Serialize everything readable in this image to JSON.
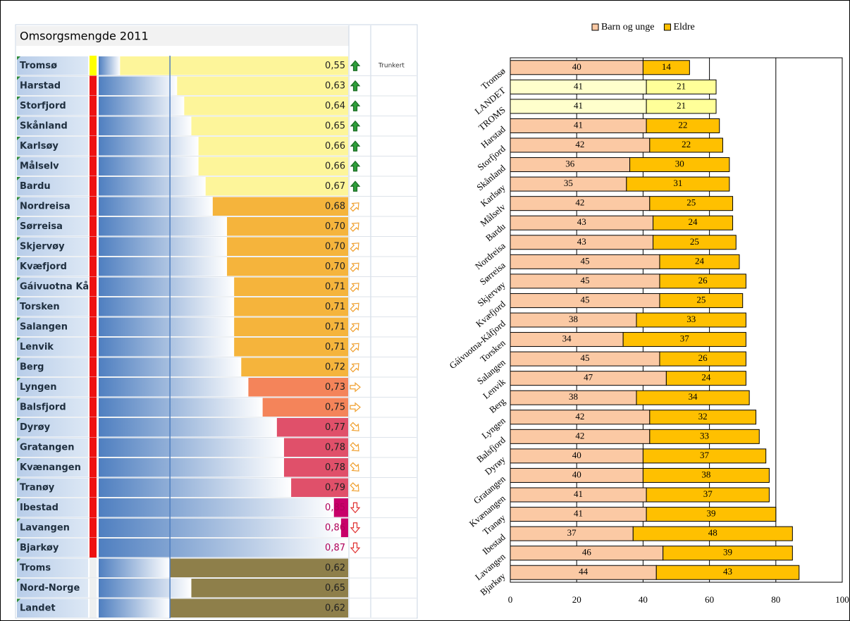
{
  "chart_data": [
    {
      "type": "databar",
      "title": "Omsorgsmengde 2011",
      "note": "Trunkert",
      "categories": [
        "Tromsø",
        "Harstad",
        "Storfjord",
        "Skånland",
        "Karlsøy",
        "Målselv",
        "Bardu",
        "Nordreisa",
        "Sørreisa",
        "Skjervøy",
        "Kvæfjord",
        "Gáivuotna Kå",
        "Torsken",
        "Salangen",
        "Lenvik",
        "Berg",
        "Lyngen",
        "Balsfjord",
        "Dyrøy",
        "Gratangen",
        "Kvænangen",
        "Tranøy",
        "Ibestad",
        "Lavangen",
        "Bjarkøy",
        "Troms",
        "Nord-Norge",
        "Landet"
      ],
      "values": [
        0.55,
        0.63,
        0.64,
        0.65,
        0.66,
        0.66,
        0.67,
        0.68,
        0.7,
        0.7,
        0.7,
        0.71,
        0.71,
        0.71,
        0.71,
        0.72,
        0.73,
        0.75,
        0.77,
        0.78,
        0.78,
        0.79,
        0.85,
        0.86,
        0.87,
        0.62,
        0.65,
        0.62
      ],
      "value_labels": [
        "0,55",
        "0,63",
        "0,64",
        "0,65",
        "0,66",
        "0,66",
        "0,67",
        "0,68",
        "0,70",
        "0,70",
        "0,70",
        "0,71",
        "0,71",
        "0,71",
        "0,71",
        "0,72",
        "0,73",
        "0,75",
        "0,77",
        "0,78",
        "0,78",
        "0,79",
        "0,85",
        "0,86",
        "0,87",
        "0,62",
        "0,65",
        "0,62"
      ],
      "row_colors": [
        "#fdf59a",
        "#fdf59a",
        "#fdf59a",
        "#fdf59a",
        "#fdf59a",
        "#fdf59a",
        "#fdf59a",
        "#f5b43c",
        "#f5b43c",
        "#f5b43c",
        "#f5b43c",
        "#f5b43c",
        "#f5b43c",
        "#f5b43c",
        "#f5b43c",
        "#f5b43c",
        "#f4845a",
        "#f4845a",
        "#e0506a",
        "#e0506a",
        "#e0506a",
        "#e0506a",
        "#c8006a",
        "#c8006a",
        "#c8006a",
        "#8e7f4a",
        "#8e7f4a",
        "#8e7f4a"
      ],
      "flag_colors": [
        "#ffff00",
        "#ee1111",
        "#ee1111",
        "#ee1111",
        "#ee1111",
        "#ee1111",
        "#ee1111",
        "#ee1111",
        "#ee1111",
        "#ee1111",
        "#ee1111",
        "#ee1111",
        "#ee1111",
        "#ee1111",
        "#ee1111",
        "#ee1111",
        "#ee1111",
        "#ee1111",
        "#ee1111",
        "#ee1111",
        "#ee1111",
        "#ee1111",
        "#ee1111",
        "#ee1111",
        "#ee1111",
        null,
        null,
        null
      ],
      "icons": [
        "up",
        "up",
        "up",
        "up",
        "up",
        "up",
        "up",
        "up-right",
        "up-right",
        "up-right",
        "up-right",
        "up-right",
        "up-right",
        "up-right",
        "up-right",
        "up-right",
        "right",
        "right",
        "down-right",
        "down-right",
        "down-right",
        "down-right",
        "down",
        "down",
        "down",
        null,
        null,
        null
      ],
      "xlim": [
        0.52,
        0.87
      ]
    },
    {
      "type": "stacked_bar",
      "categories": [
        "Tromsø",
        "LANDET",
        "TROMS",
        "Harstad",
        "Storfjord",
        "Skånland",
        "Karlsøy",
        "Målselv",
        "Bardu",
        "Nordreisa",
        "Sørreisa",
        "Skjervøy",
        "Kvæfjord",
        "Gáivuotna-Kåfjord",
        "Torsken",
        "Salangen",
        "Lenvik",
        "Berg",
        "Lyngen",
        "Balsfjord",
        "Dyrøy",
        "Gratangen",
        "Kvænangen",
        "Tranøy",
        "Ibestad",
        "Lavangen",
        "Bjarkøy"
      ],
      "series": [
        {
          "name": "Barn og unge",
          "color": "#fbc9a4",
          "highlight_color": "#ffffcc",
          "values": [
            40,
            41,
            41,
            41,
            42,
            36,
            35,
            42,
            43,
            43,
            45,
            45,
            45,
            38,
            34,
            45,
            47,
            38,
            42,
            42,
            40,
            40,
            41,
            41,
            37,
            46,
            44
          ]
        },
        {
          "name": "Eldre",
          "color": "#ffc000",
          "highlight_color": "#ffff99",
          "values": [
            14,
            21,
            21,
            22,
            22,
            30,
            31,
            25,
            24,
            25,
            24,
            26,
            25,
            33,
            37,
            26,
            24,
            34,
            32,
            33,
            37,
            38,
            37,
            39,
            48,
            39,
            43
          ]
        }
      ],
      "highlight": [
        1,
        2
      ],
      "xlim": [
        0,
        100
      ],
      "xticks": [
        0,
        20,
        40,
        60,
        80,
        100
      ],
      "grid": true,
      "legend": "top"
    }
  ]
}
